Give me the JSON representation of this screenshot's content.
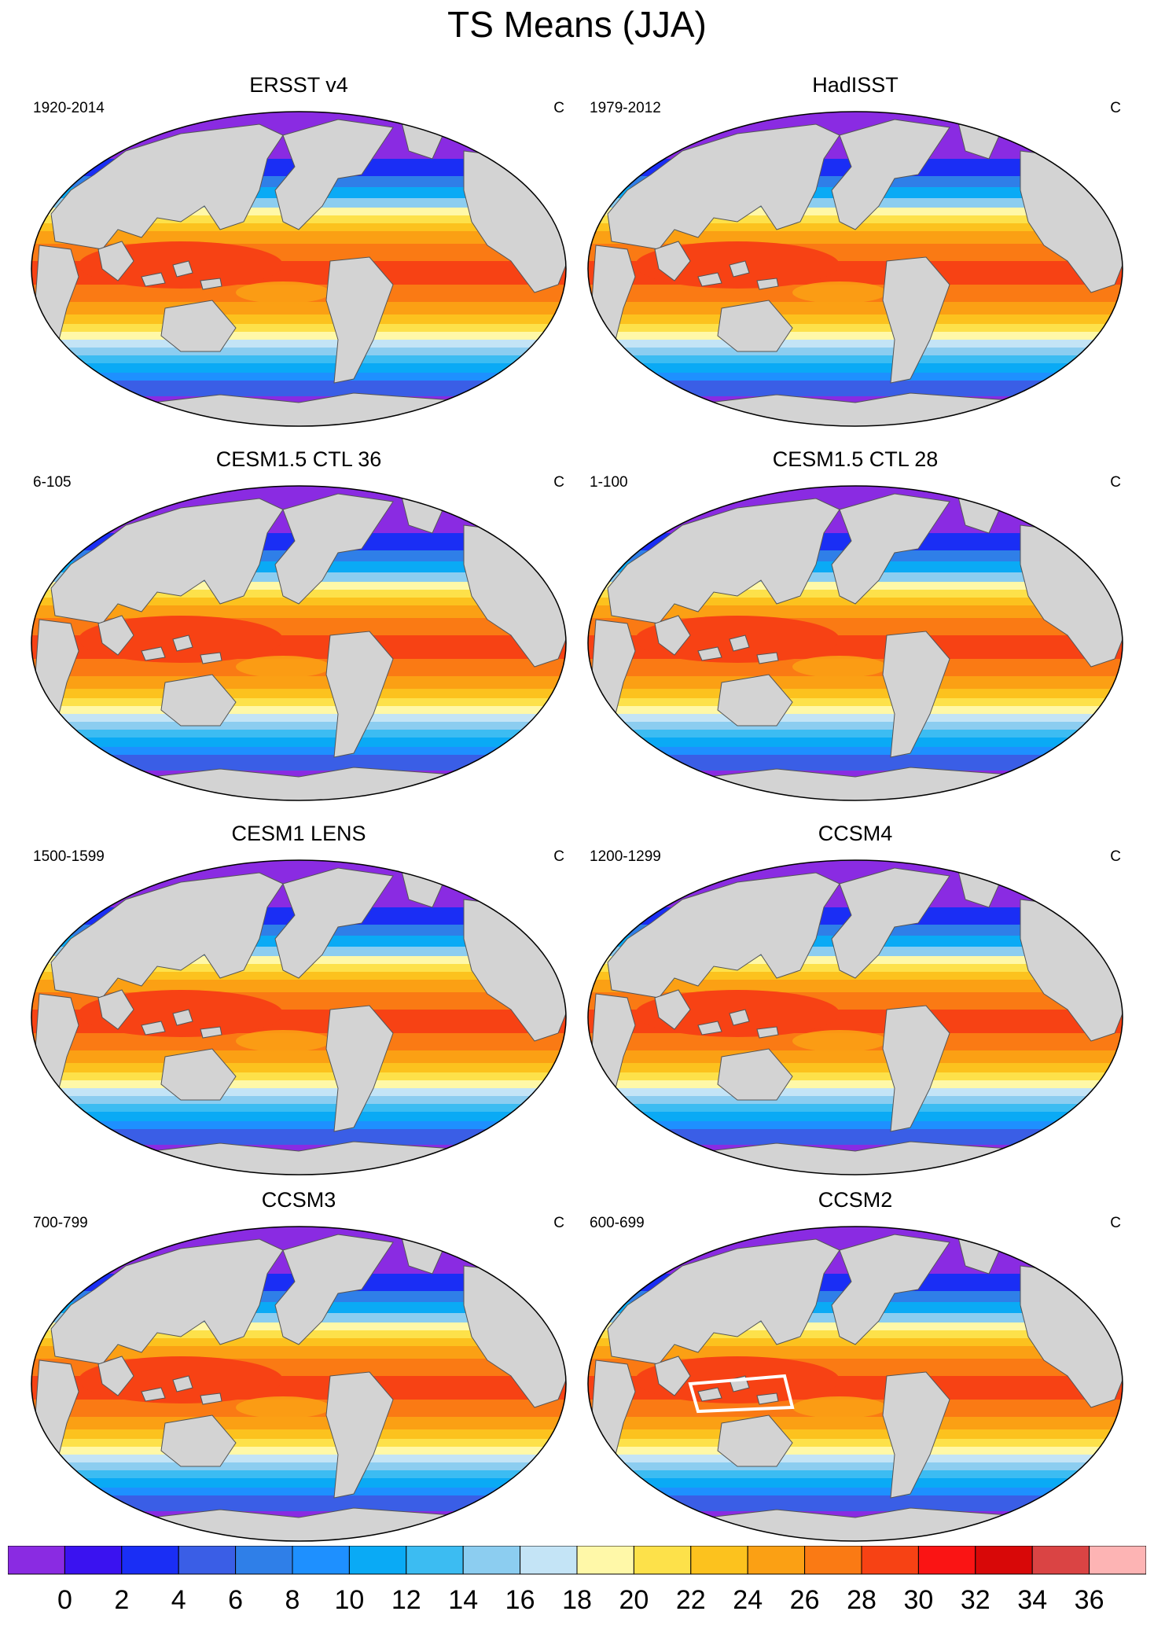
{
  "title": "TS Means (JJA)",
  "units": "C",
  "panels": [
    {
      "title": "ERSST v4",
      "years": "1920-2014",
      "style": "obs"
    },
    {
      "title": "HadISST",
      "years": "1979-2012",
      "style": "obs"
    },
    {
      "title": "CESM1.5 CTL 36",
      "years": "6-105",
      "style": "model"
    },
    {
      "title": "CESM1.5 CTL 28",
      "years": "1-100",
      "style": "model"
    },
    {
      "title": "CESM1 LENS",
      "years": "1500-1599",
      "style": "model"
    },
    {
      "title": "CCSM4",
      "years": "1200-1299",
      "style": "model"
    },
    {
      "title": "CCSM3",
      "years": "700-799",
      "style": "model"
    },
    {
      "title": "CCSM2",
      "years": "600-699",
      "style": "coarse"
    }
  ],
  "colorbar": {
    "labels": [
      "0",
      "2",
      "4",
      "6",
      "8",
      "10",
      "12",
      "14",
      "16",
      "18",
      "20",
      "22",
      "24",
      "26",
      "28",
      "30",
      "32",
      "34",
      "36"
    ],
    "colors": [
      "#8a2be2",
      "#3a12f0",
      "#1a2ef5",
      "#3a5ee6",
      "#2f7fe8",
      "#1e90ff",
      "#0aaaf5",
      "#3cbcf2",
      "#8ccdf0",
      "#c4e4f6",
      "#fff8a8",
      "#fde14a",
      "#fcc21e",
      "#fba014",
      "#fa7a14",
      "#f74214",
      "#fa1414",
      "#d80808",
      "#da4444",
      "#fdb4b4"
    ]
  },
  "land_color": "#d3d3d3"
}
